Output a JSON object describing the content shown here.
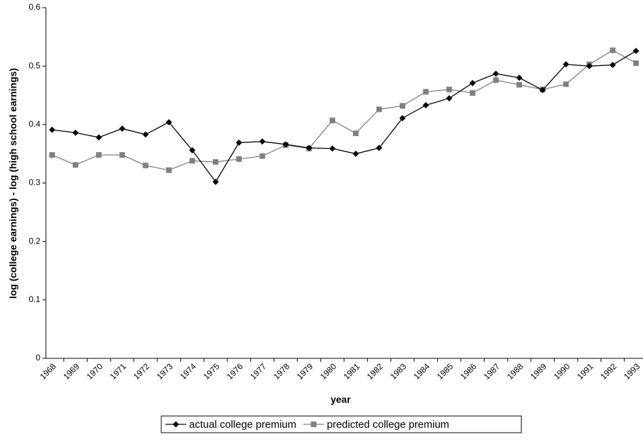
{
  "chart_data": {
    "type": "line",
    "x_label": "year",
    "y_label": "log (college earnings) - log (high school earnings)",
    "categories": [
      "1968",
      "1969",
      "1970",
      "1971",
      "1972",
      "1973",
      "1974",
      "1975",
      "1976",
      "1977",
      "1978",
      "1979",
      "1980",
      "1981",
      "1982",
      "1983",
      "1984",
      "1985",
      "1986",
      "1987",
      "1988",
      "1989",
      "1990",
      "1991",
      "1992",
      "1993"
    ],
    "series": [
      {
        "name": "actual college premium",
        "color": "#000000",
        "marker": "diamond",
        "values": [
          0.391,
          0.386,
          0.378,
          0.393,
          0.383,
          0.404,
          0.356,
          0.302,
          0.369,
          0.371,
          0.366,
          0.36,
          0.359,
          0.35,
          0.36,
          0.411,
          0.433,
          0.445,
          0.471,
          0.487,
          0.48,
          0.459,
          0.503,
          0.5,
          0.502,
          0.526
        ]
      },
      {
        "name": "predicted college premium",
        "color": "#808080",
        "marker": "square",
        "values": [
          0.348,
          0.331,
          0.348,
          0.348,
          0.33,
          0.322,
          0.338,
          0.336,
          0.341,
          0.346,
          0.365,
          0.359,
          0.407,
          0.385,
          0.426,
          0.432,
          0.456,
          0.46,
          0.454,
          0.476,
          0.468,
          0.46,
          0.469,
          0.503,
          0.527,
          0.505
        ]
      }
    ],
    "ylim": [
      0,
      0.6
    ],
    "yticks": [
      0,
      0.1,
      0.2,
      0.3,
      0.4,
      0.5,
      0.6
    ],
    "grid": false
  }
}
